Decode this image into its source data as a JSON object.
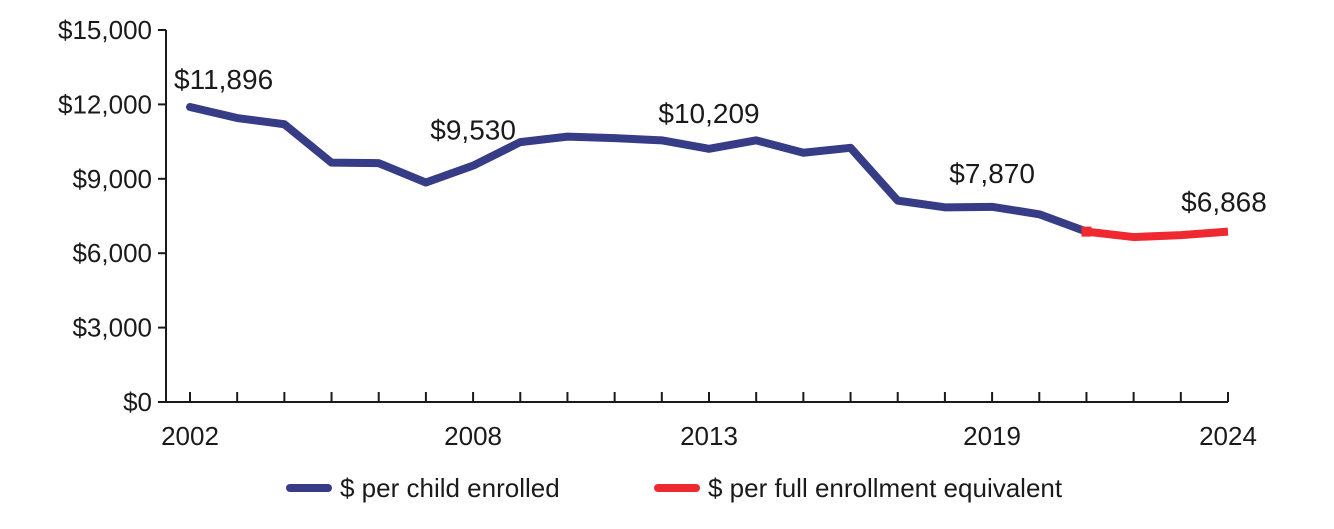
{
  "chart_data": {
    "type": "line",
    "title": "",
    "xlabel": "",
    "ylabel": "",
    "xlim": [
      2002,
      2024
    ],
    "ylim": [
      0,
      15000
    ],
    "y_ticks": [
      0,
      3000,
      6000,
      9000,
      12000,
      15000
    ],
    "y_tick_labels": [
      "$0",
      "$3,000",
      "$6,000",
      "$9,000",
      "$12,000",
      "$15,000"
    ],
    "x_tick_labels": [
      "2002",
      "2008",
      "2013",
      "2019",
      "2024"
    ],
    "x_label_years": [
      2002,
      2008,
      2013,
      2019,
      2024
    ],
    "grid": false,
    "legend_position": "bottom",
    "series": [
      {
        "name": "$ per child enrolled",
        "color": "#363c85",
        "x": [
          2002,
          2003,
          2004,
          2005,
          2006,
          2007,
          2008,
          2009,
          2010,
          2011,
          2012,
          2013,
          2014,
          2015,
          2016,
          2017,
          2018,
          2019,
          2020,
          2021
        ],
        "values": [
          11896,
          11450,
          11200,
          9650,
          9630,
          8850,
          9530,
          10480,
          10700,
          10640,
          10550,
          10209,
          10550,
          10050,
          10250,
          8120,
          7850,
          7870,
          7570,
          6870
        ]
      },
      {
        "name": "$ per full enrollment equivalent",
        "color": "#ee2a30",
        "x": [
          2021,
          2022,
          2023,
          2024
        ],
        "values": [
          6870,
          6650,
          6730,
          6868
        ]
      }
    ],
    "annotations": [
      {
        "x": 2002,
        "y": 11896,
        "text": "$11,896"
      },
      {
        "x": 2008,
        "y": 9530,
        "text": "$9,530"
      },
      {
        "x": 2013,
        "y": 10209,
        "text": "$10,209"
      },
      {
        "x": 2019,
        "y": 7870,
        "text": "$7,870"
      },
      {
        "x": 2024,
        "y": 6868,
        "text": "$6,868"
      }
    ]
  }
}
